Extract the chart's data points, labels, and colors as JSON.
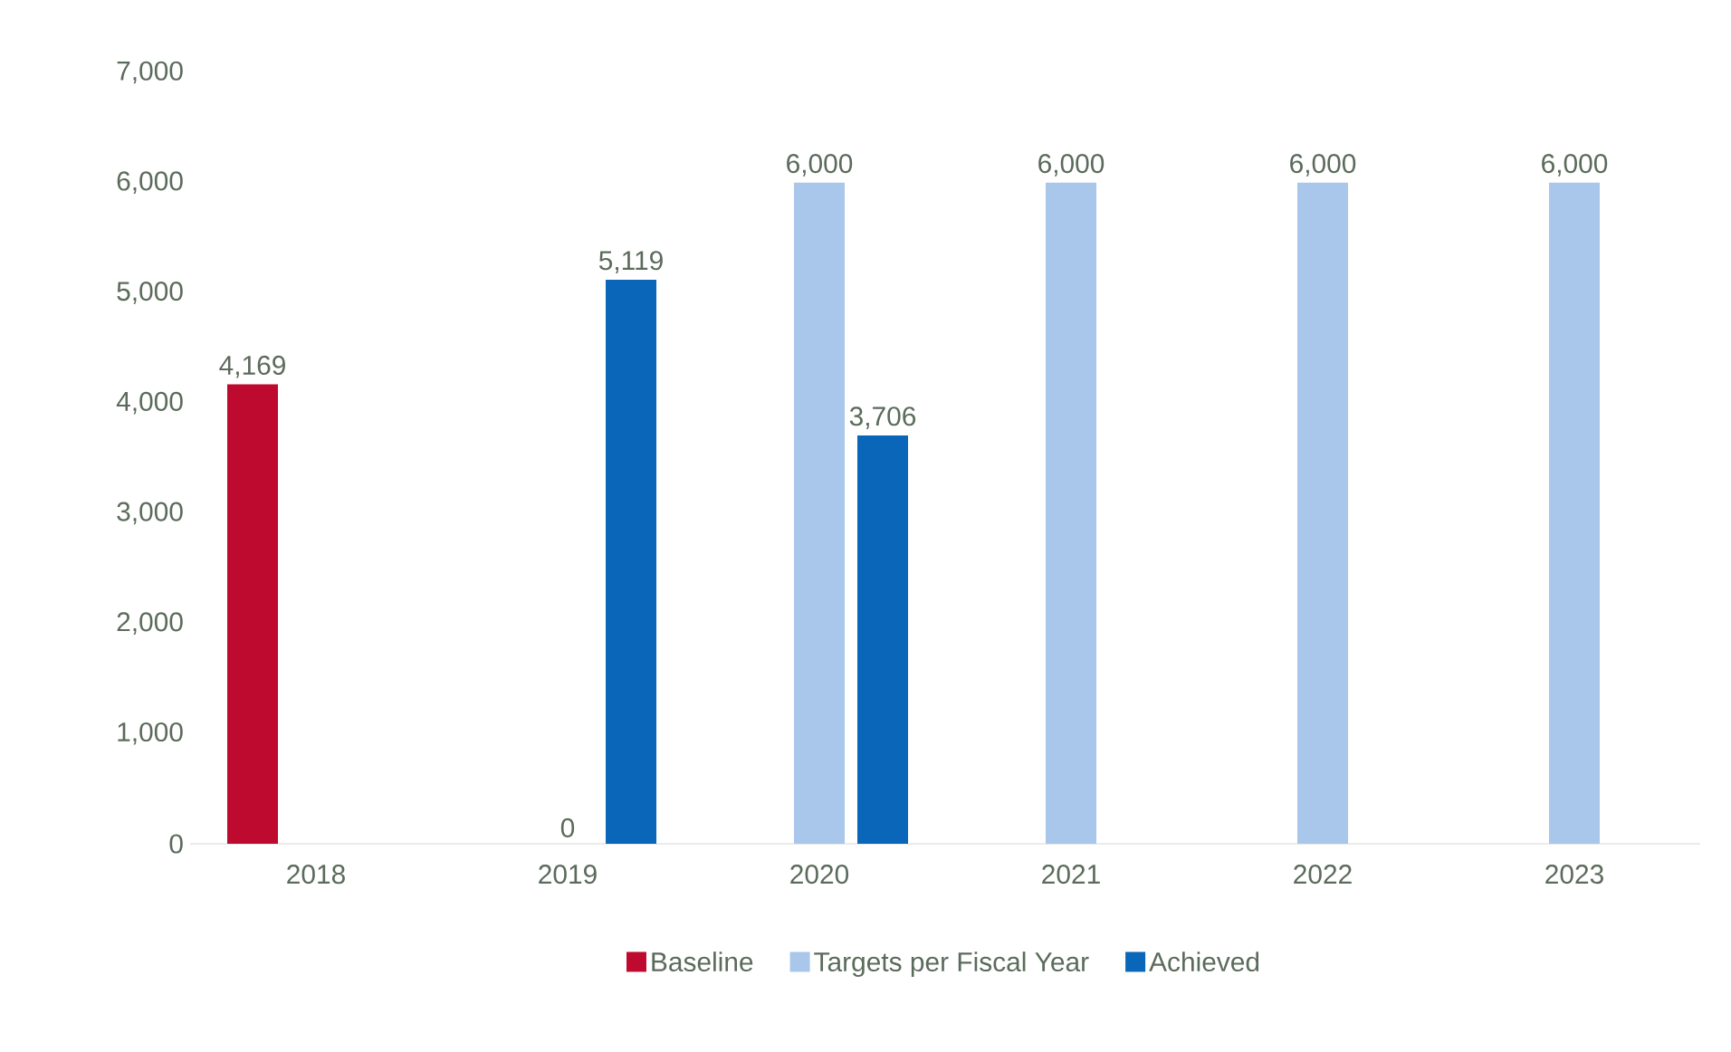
{
  "chart_data": {
    "type": "bar",
    "categories": [
      "2018",
      "2019",
      "2020",
      "2021",
      "2022",
      "2023"
    ],
    "series": [
      {
        "name": "Baseline",
        "color": "#be0a2f",
        "values": [
          4169,
          null,
          null,
          null,
          null,
          null
        ],
        "value_labels": [
          "4,169",
          null,
          null,
          null,
          null,
          null
        ]
      },
      {
        "name": "Targets per Fiscal Year",
        "color": "#a9c6eb",
        "values": [
          null,
          0,
          6000,
          6000,
          6000,
          6000
        ],
        "value_labels": [
          null,
          "0",
          "6,000",
          "6,000",
          "6,000",
          "6,000"
        ]
      },
      {
        "name": "Achieved",
        "color": "#0a66b8",
        "values": [
          null,
          5119,
          3706,
          null,
          null,
          null
        ],
        "value_labels": [
          null,
          "5,119",
          "3,706",
          null,
          null,
          null
        ]
      }
    ],
    "ylim": [
      0,
      7000
    ],
    "yticks": [
      0,
      {
        "value": 1000,
        "label": "1,000"
      },
      {
        "value": 2000,
        "label": "2,000"
      },
      {
        "value": 3000,
        "label": "3,000"
      },
      {
        "value": 4000,
        "label": "4,000"
      },
      {
        "value": 5000,
        "label": "5,000"
      },
      {
        "value": 6000,
        "label": "6,000"
      },
      {
        "value": 7000,
        "label": "7,000"
      }
    ],
    "grid": false,
    "legend": "bottom"
  }
}
